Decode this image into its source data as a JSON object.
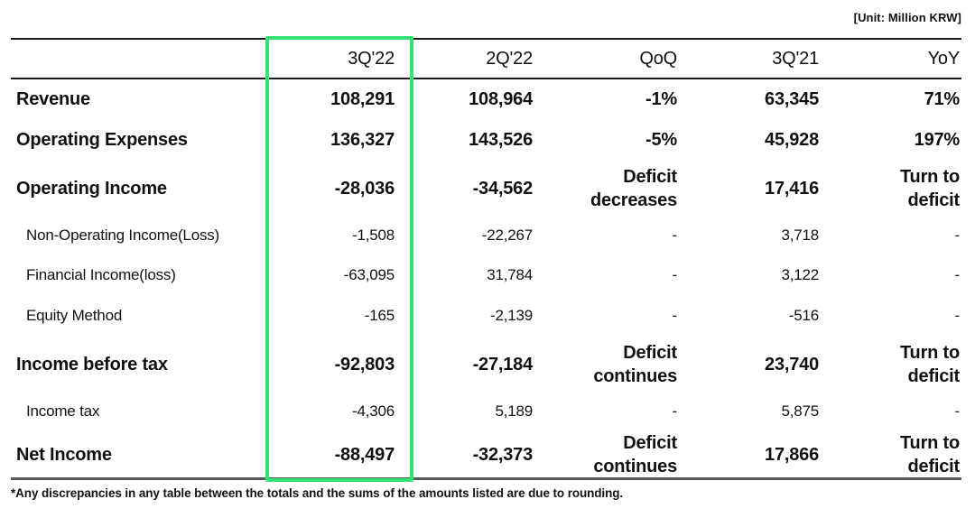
{
  "unit_label": "[Unit: Million KRW]",
  "footnote": "*Any discrepancies in any table between the totals and the sums of the amounts listed are due to rounding.",
  "highlight": {
    "color": "#35e374",
    "highlighted_column": "3Q'22"
  },
  "table": {
    "columns": [
      "3Q'22",
      "2Q'22",
      "QoQ",
      "3Q'21",
      "YoY"
    ],
    "rows": [
      {
        "label": "Revenue",
        "q3_22": "108,291",
        "q2_22": "108,964",
        "qoq": "-1%",
        "q3_21": "63,345",
        "yoy": "71%"
      },
      {
        "label": "Operating Expenses",
        "q3_22": "136,327",
        "q2_22": "143,526",
        "qoq": "-5%",
        "q3_21": "45,928",
        "yoy": "197%"
      },
      {
        "label": "Operating Income",
        "q3_22": "-28,036",
        "q2_22": "-34,562",
        "qoq": "Deficit\ndecreases",
        "q3_21": "17,416",
        "yoy": "Turn to\ndeficit"
      },
      {
        "label": "Non-Operating Income(Loss)",
        "q3_22": "-1,508",
        "q2_22": "-22,267",
        "qoq": "-",
        "q3_21": "3,718",
        "yoy": "-"
      },
      {
        "label": "Financial Income(loss)",
        "q3_22": "-63,095",
        "q2_22": "31,784",
        "qoq": "-",
        "q3_21": "3,122",
        "yoy": "-"
      },
      {
        "label": "Equity Method",
        "q3_22": "-165",
        "q2_22": "-2,139",
        "qoq": "-",
        "q3_21": "-516",
        "yoy": "-"
      },
      {
        "label": "Income before tax",
        "q3_22": "-92,803",
        "q2_22": "-27,184",
        "qoq": "Deficit\ncontinues",
        "q3_21": "23,740",
        "yoy": "Turn to\ndeficit"
      },
      {
        "label": "Income tax",
        "q3_22": "-4,306",
        "q2_22": "5,189",
        "qoq": "-",
        "q3_21": "5,875",
        "yoy": "-"
      },
      {
        "label": "Net Income",
        "q3_22": "-88,497",
        "q2_22": "-32,373",
        "qoq": "Deficit\ncontinues",
        "q3_21": "17,866",
        "yoy": "Turn to\ndeficit"
      }
    ]
  }
}
